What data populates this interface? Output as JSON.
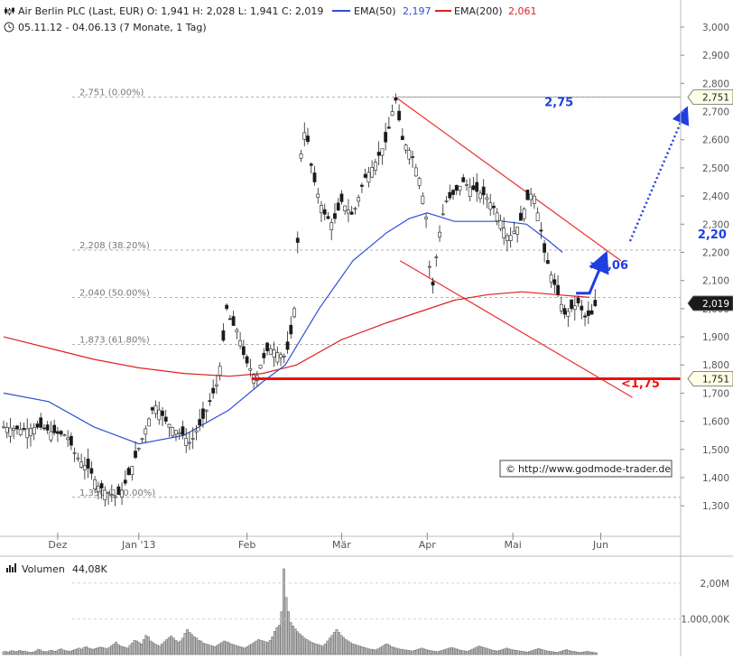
{
  "header": {
    "title_line": "Air Berlin PLC (Last, EUR)  O: 1,941  H: 2,028  L: 1,941  C: 2,019",
    "ema50_label": "EMA(50)",
    "ema50_value": "2,197",
    "ema200_label": "EMA(200)",
    "ema200_value": "2,061",
    "range_line": "05.11.12 - 04.06.13 (7 Monate, 1 Tag)"
  },
  "colors": {
    "candle_body": "#1a1a1a",
    "ema50": "#2f4fd8",
    "ema200": "#e02020",
    "trend_line": "#e83030",
    "support_line": "#ee1111",
    "arrow": "#1f3fe0",
    "fib_line": "#999999",
    "volume_bar": "#b8b8b8"
  },
  "watermark": "http://www.godmode-trader.de",
  "volume": {
    "label": "Volumen",
    "value": "44,08K"
  },
  "chart_data": [
    {
      "type": "candlestick",
      "title": "Air Berlin PLC (Last, EUR)",
      "x_tick_labels": [
        "Dez",
        "Jan '13",
        "Feb",
        "Mär",
        "Apr",
        "Mai",
        "Jun"
      ],
      "y_ticks": [
        1.3,
        1.4,
        1.5,
        1.6,
        1.7,
        1.8,
        1.9,
        2.0,
        2.1,
        2.2,
        2.3,
        2.4,
        2.5,
        2.6,
        2.7,
        2.8,
        2.9,
        3.0
      ],
      "y_tick_labels": [
        "1,300",
        "1,400",
        "1,500",
        "1,600",
        "1,700",
        "1,800",
        "1,900",
        "2,000",
        "2,100",
        "2,200",
        "2,300",
        "2,400",
        "2,500",
        "2,600",
        "2,700",
        "2,800",
        "2,900",
        "3,000"
      ],
      "ylim": [
        1.23,
        3.0
      ],
      "last_price_label": "2,019",
      "ohlc_last": {
        "open": 1.941,
        "high": 2.028,
        "low": 1.941,
        "close": 2.019
      },
      "close_path": [
        [
          0,
          1.58
        ],
        [
          8,
          1.57
        ],
        [
          16,
          1.58
        ],
        [
          22,
          1.56
        ],
        [
          28,
          1.55
        ],
        [
          32,
          1.48
        ],
        [
          35,
          1.45
        ],
        [
          38,
          1.43
        ],
        [
          42,
          1.37
        ],
        [
          46,
          1.35
        ],
        [
          50,
          1.33
        ],
        [
          53,
          1.36
        ],
        [
          55,
          1.4
        ],
        [
          58,
          1.46
        ],
        [
          62,
          1.55
        ],
        [
          65,
          1.62
        ],
        [
          67,
          1.66
        ],
        [
          69,
          1.64
        ],
        [
          72,
          1.6
        ],
        [
          76,
          1.57
        ],
        [
          80,
          1.55
        ],
        [
          83,
          1.52
        ],
        [
          85,
          1.56
        ],
        [
          88,
          1.6
        ],
        [
          92,
          1.68
        ],
        [
          95,
          1.74
        ],
        [
          97,
          1.85
        ],
        [
          99,
          2.0
        ],
        [
          101,
          1.95
        ],
        [
          104,
          1.92
        ],
        [
          107,
          1.82
        ],
        [
          110,
          1.78
        ],
        [
          112,
          1.75
        ],
        [
          114,
          1.8
        ],
        [
          117,
          1.85
        ],
        [
          119,
          1.86
        ],
        [
          122,
          1.84
        ],
        [
          125,
          1.83
        ],
        [
          127,
          1.88
        ],
        [
          129,
          2.0
        ],
        [
          130,
          2.12
        ],
        [
          131,
          2.35
        ],
        [
          132,
          2.55
        ],
        [
          134,
          2.65
        ],
        [
          137,
          2.48
        ],
        [
          139,
          2.42
        ],
        [
          142,
          2.34
        ],
        [
          146,
          2.3
        ],
        [
          150,
          2.38
        ],
        [
          155,
          2.33
        ],
        [
          160,
          2.46
        ],
        [
          165,
          2.52
        ],
        [
          170,
          2.6
        ],
        [
          173,
          2.72
        ],
        [
          174,
          2.74
        ],
        [
          177,
          2.6
        ],
        [
          181,
          2.55
        ],
        [
          185,
          2.45
        ],
        [
          188,
          2.3
        ],
        [
          189,
          2.15
        ],
        [
          190,
          2.05
        ],
        [
          193,
          2.25
        ],
        [
          196,
          2.38
        ],
        [
          199,
          2.4
        ],
        [
          204,
          2.45
        ],
        [
          209,
          2.42
        ],
        [
          214,
          2.4
        ],
        [
          219,
          2.34
        ],
        [
          224,
          2.25
        ],
        [
          229,
          2.3
        ],
        [
          232,
          2.38
        ],
        [
          235,
          2.42
        ],
        [
          238,
          2.3
        ],
        [
          240,
          2.2
        ],
        [
          243,
          2.12
        ],
        [
          246,
          2.05
        ],
        [
          249,
          1.98
        ],
        [
          252,
          2.0
        ],
        [
          255,
          2.02
        ],
        [
          258,
          1.97
        ],
        [
          261,
          1.98
        ],
        [
          263,
          2.02
        ]
      ],
      "ema50_label": "EMA(50)",
      "ema50": [
        [
          0,
          1.7
        ],
        [
          20,
          1.67
        ],
        [
          40,
          1.58
        ],
        [
          60,
          1.52
        ],
        [
          80,
          1.55
        ],
        [
          100,
          1.64
        ],
        [
          115,
          1.74
        ],
        [
          125,
          1.8
        ],
        [
          140,
          2.0
        ],
        [
          155,
          2.17
        ],
        [
          170,
          2.27
        ],
        [
          180,
          2.32
        ],
        [
          188,
          2.34
        ],
        [
          200,
          2.31
        ],
        [
          212,
          2.31
        ],
        [
          222,
          2.31
        ],
        [
          232,
          2.3
        ],
        [
          242,
          2.24
        ],
        [
          248,
          2.2
        ]
      ],
      "ema200_label": "EMA(200)",
      "ema200": [
        [
          0,
          1.9
        ],
        [
          20,
          1.86
        ],
        [
          40,
          1.82
        ],
        [
          60,
          1.79
        ],
        [
          80,
          1.77
        ],
        [
          100,
          1.76
        ],
        [
          115,
          1.77
        ],
        [
          130,
          1.8
        ],
        [
          150,
          1.89
        ],
        [
          170,
          1.95
        ],
        [
          185,
          1.99
        ],
        [
          200,
          2.03
        ],
        [
          215,
          2.05
        ],
        [
          230,
          2.06
        ],
        [
          245,
          2.05
        ],
        [
          260,
          2.04
        ]
      ],
      "fibonacci_levels": [
        {
          "label": "2,751 (0.00%)",
          "value": 2.751
        },
        {
          "label": "2,208 (38.20%)",
          "value": 2.208
        },
        {
          "label": "2,040 (50.00%)",
          "value": 2.04
        },
        {
          "label": "1,873 (61.80%)",
          "value": 1.873
        },
        {
          "label": "1,330 (100.00%)",
          "value": 1.33
        }
      ],
      "price_tags": [
        {
          "label": "2,751",
          "value": 2.751
        },
        {
          "label": "1,751",
          "value": 1.751
        }
      ],
      "trend_lines": [
        {
          "name": "upper",
          "points": [
            [
              174,
              2.751
            ],
            [
              274,
              2.17
            ]
          ]
        },
        {
          "name": "lower",
          "points": [
            [
              176,
              2.17
            ],
            [
              279,
              1.685
            ]
          ]
        }
      ],
      "support_line": {
        "value": 1.751,
        "from_x": 110
      },
      "annotations": [
        {
          "text": "2,75",
          "x": 240,
          "y": 2.72,
          "color": "#1f3fe0"
        },
        {
          "text": "2,20",
          "x": 308,
          "y": 2.25,
          "color": "#1f3fe0"
        },
        {
          "text": ">2,06",
          "x": 260,
          "y": 2.14,
          "color": "#1f3fe0"
        },
        {
          "text": "<1,75",
          "x": 274,
          "y": 1.72,
          "color": "#ee1111"
        }
      ]
    },
    {
      "type": "bar",
      "title": "Volumen",
      "y_tick_labels": [
        "1.000,00K",
        "2,00M"
      ],
      "y_ticks": [
        1000,
        2000
      ],
      "ylim": [
        0,
        2500
      ],
      "unit": "K",
      "values": [
        80,
        90,
        70,
        100,
        110,
        85,
        90,
        120,
        95,
        100,
        80,
        70,
        60,
        75,
        100,
        150,
        130,
        90,
        85,
        80,
        110,
        120,
        95,
        100,
        140,
        160,
        130,
        110,
        100,
        90,
        120,
        140,
        160,
        180,
        150,
        200,
        220,
        180,
        160,
        150,
        170,
        190,
        210,
        200,
        180,
        160,
        200,
        250,
        300,
        350,
        280,
        240,
        220,
        200,
        180,
        260,
        320,
        400,
        380,
        340,
        300,
        420,
        540,
        500,
        380,
        340,
        300,
        260,
        240,
        300,
        360,
        420,
        480,
        520,
        460,
        400,
        350,
        380,
        460,
        600,
        700,
        620,
        560,
        500,
        460,
        400,
        380,
        320,
        300,
        280,
        260,
        240,
        220,
        260,
        300,
        340,
        380,
        360,
        340,
        300,
        280,
        260,
        240,
        220,
        200,
        180,
        220,
        260,
        300,
        340,
        380,
        420,
        400,
        380,
        360,
        340,
        400,
        500,
        650,
        760,
        820,
        1200,
        2400,
        1600,
        1200,
        900,
        800,
        720,
        640,
        580,
        520,
        460,
        420,
        380,
        350,
        320,
        300,
        280,
        260,
        240,
        300,
        380,
        460,
        540,
        620,
        700,
        620,
        540,
        480,
        420,
        380,
        340,
        300,
        280,
        260,
        240,
        220,
        200,
        180,
        160,
        150,
        140,
        130,
        160,
        200,
        240,
        280,
        300,
        260,
        220,
        200,
        180,
        160,
        150,
        140,
        130,
        120,
        110,
        100,
        120,
        140,
        160,
        180,
        160,
        140,
        120,
        110,
        100,
        90,
        80,
        100,
        120,
        140,
        160,
        180,
        200,
        180,
        160,
        140,
        120,
        110,
        100,
        90,
        120,
        150,
        180,
        210,
        240,
        220,
        200,
        180,
        160,
        140,
        120,
        110,
        100,
        120,
        140,
        160,
        180,
        160,
        140,
        130,
        120,
        110,
        100,
        90,
        80,
        70,
        90,
        110,
        130,
        150,
        170,
        150,
        130,
        110,
        100,
        90,
        80,
        70,
        60,
        80,
        100,
        120,
        140,
        120,
        100,
        90,
        80,
        70,
        60,
        70,
        80,
        90,
        80,
        70,
        60,
        50
      ]
    }
  ]
}
